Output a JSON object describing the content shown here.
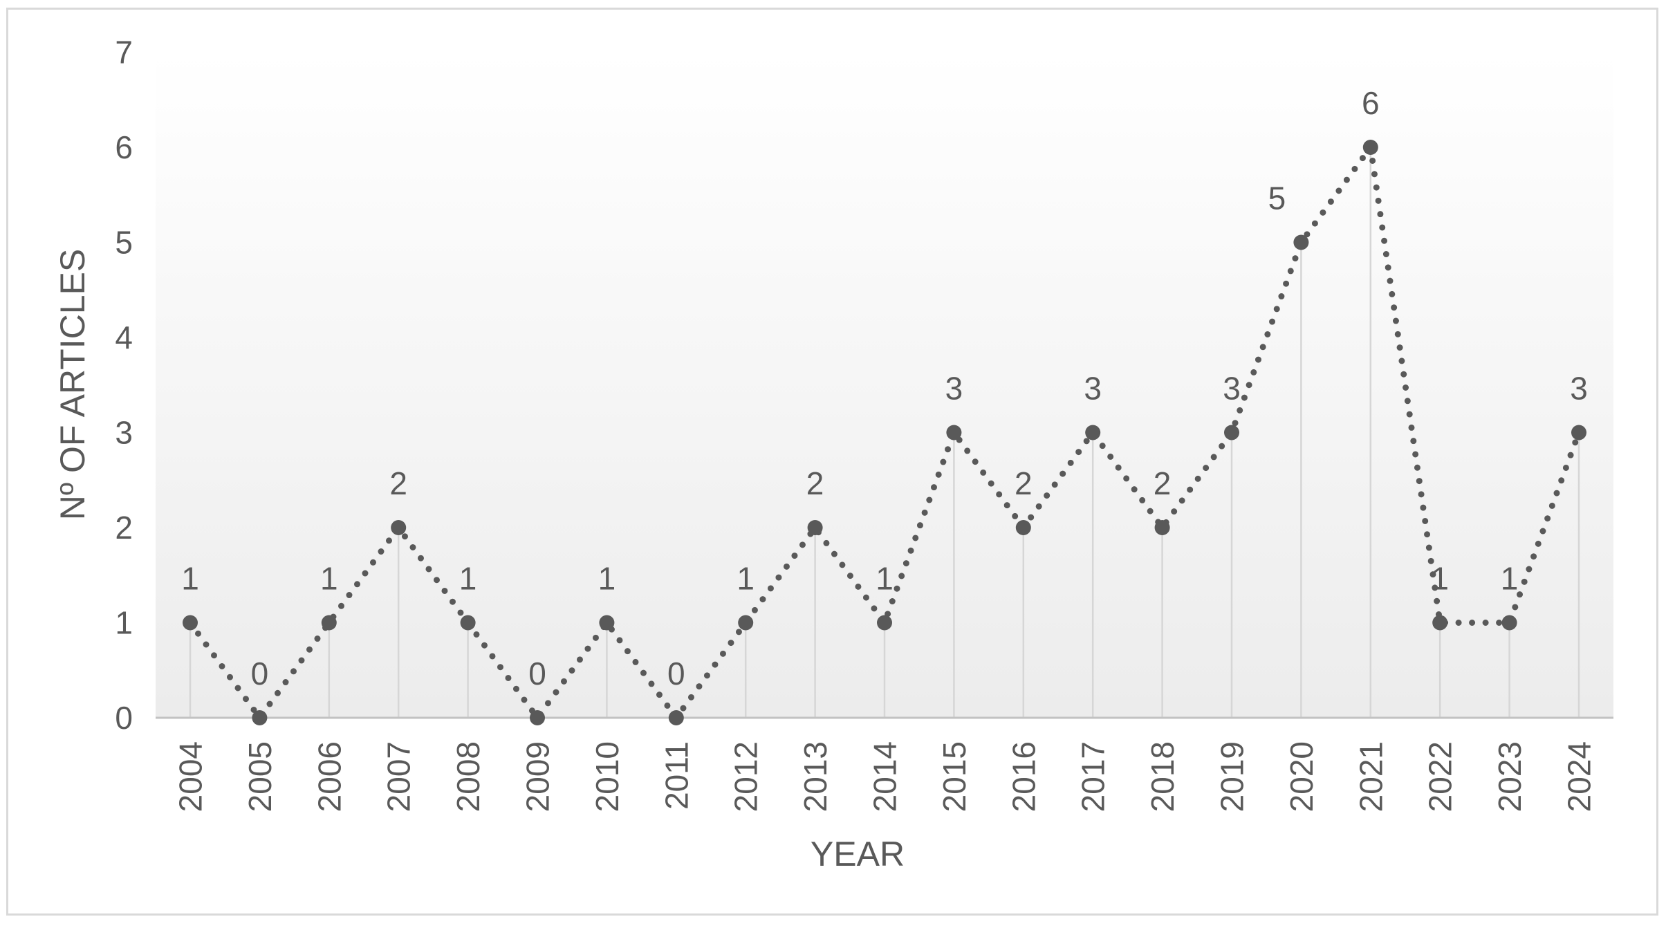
{
  "chart_data": {
    "type": "line",
    "line_style": "dotted",
    "markers": true,
    "drop_lines": true,
    "data_labels": true,
    "grid": false,
    "legend": false,
    "title": "",
    "xlabel": "YEAR",
    "ylabel": "Nº OF ARTICLES",
    "x": [
      "2004",
      "2005",
      "2006",
      "2007",
      "2008",
      "2009",
      "2010",
      "2011",
      "2012",
      "2013",
      "2014",
      "2015",
      "2016",
      "2017",
      "2018",
      "2019",
      "2020",
      "2021",
      "2022",
      "2023",
      "2024"
    ],
    "values": [
      1,
      0,
      1,
      2,
      1,
      0,
      1,
      0,
      1,
      2,
      1,
      3,
      2,
      3,
      2,
      3,
      5,
      6,
      1,
      1,
      3
    ],
    "ylim": [
      0,
      7
    ],
    "yticks": [
      "0",
      "1",
      "2",
      "3",
      "4",
      "5",
      "6",
      "7"
    ],
    "colors": {
      "series": "#595959",
      "text": "#595959",
      "drop_line": "#d6d6d6",
      "axis_line": "#c2c2c2",
      "frame_border": "#d9d9d9",
      "plot_bg_top": "#ffffff",
      "plot_bg_bottom": "#ececec"
    }
  }
}
